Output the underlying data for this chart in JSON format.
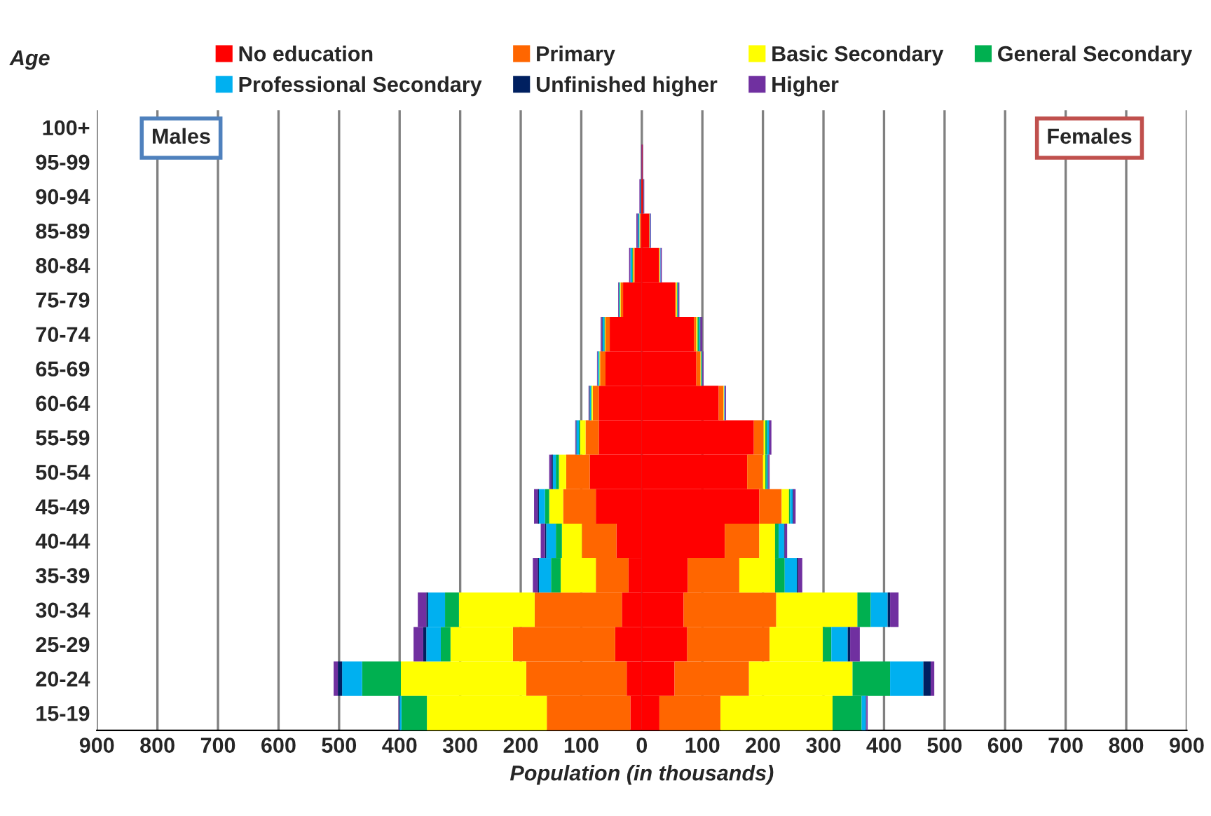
{
  "chart_data": {
    "type": "bar",
    "orientation": "horizontal",
    "stacked": true,
    "xlabel": "Population (in thousands)",
    "ylabel": "Age",
    "categories": [
      "100+",
      "95-99",
      "90-94",
      "85-89",
      "80-84",
      "75-79",
      "70-74",
      "65-69",
      "60-64",
      "55-59",
      "50-54",
      "45-49",
      "40-44",
      "35-39",
      "30-34",
      "25-29",
      "20-24",
      "15-19"
    ],
    "series": [
      {
        "name": "No education",
        "color": "#ff0000",
        "values": [
          0,
          0,
          -1,
          -2,
          -12,
          -31,
          -53,
          -60,
          -71,
          -71,
          -86,
          -76,
          -42,
          -22,
          -33,
          -44,
          -25,
          -19
        ]
      },
      {
        "name": "Primary",
        "color": "#ff6600",
        "values": [
          0,
          0,
          0,
          -1,
          -2,
          -4,
          -7,
          -9,
          -10,
          -22,
          -39,
          -54,
          -57,
          -54,
          -144,
          -169,
          -166,
          -138
        ]
      },
      {
        "name": "Basic Secondary",
        "color": "#ffff00",
        "values": [
          0,
          0,
          0,
          -1,
          -1,
          -1,
          -1,
          -1,
          -2,
          -9,
          -12,
          -23,
          -33,
          -58,
          -125,
          -103,
          -207,
          -198
        ]
      },
      {
        "name": "General Secondary",
        "color": "#00b050",
        "values": [
          0,
          0,
          0,
          0,
          -1,
          -1,
          -1,
          -1,
          -1,
          -2,
          -5,
          -7,
          -10,
          -16,
          -23,
          -16,
          -64,
          -42
        ]
      },
      {
        "name": "Professional Secondary",
        "color": "#00b0f0",
        "values": [
          0,
          0,
          -1,
          -2,
          -3,
          -1,
          -3,
          -2,
          -2,
          -4,
          -5,
          -10,
          -16,
          -20,
          -28,
          -24,
          -33,
          -3
        ]
      },
      {
        "name": "Unfinished higher",
        "color": "#002060",
        "values": [
          0,
          0,
          -1,
          -1,
          0,
          0,
          -1,
          0,
          -1,
          -1,
          -2,
          -2,
          -2,
          -2,
          -3,
          -5,
          -7,
          -1
        ]
      },
      {
        "name": "Higher",
        "color": "#7030a0",
        "values": [
          0,
          -1,
          -1,
          -2,
          -2,
          -1,
          -2,
          -1,
          -1,
          -1,
          -4,
          -6,
          -7,
          -8,
          -14,
          -16,
          -7,
          -1
        ]
      },
      {
        "color": "#ff0000",
        "values": [
          0,
          1,
          2,
          12,
          28,
          55,
          86,
          90,
          127,
          185,
          174,
          194,
          137,
          76,
          69,
          75,
          54,
          29
        ]
      },
      {
        "color": "#ff6600",
        "values": [
          0,
          0,
          0,
          1,
          1,
          2,
          4,
          7,
          8,
          16,
          26,
          37,
          57,
          85,
          153,
          136,
          123,
          101
        ]
      },
      {
        "color": "#ffff00",
        "values": [
          0,
          0,
          0,
          0,
          1,
          1,
          2,
          1,
          1,
          3,
          4,
          12,
          26,
          59,
          134,
          88,
          171,
          185
        ]
      },
      {
        "color": "#00b050",
        "values": [
          0,
          0,
          0,
          0,
          0,
          1,
          2,
          1,
          0,
          3,
          2,
          2,
          6,
          16,
          22,
          14,
          62,
          48
        ]
      },
      {
        "color": "#00b0f0",
        "values": [
          0,
          0,
          0,
          1,
          1,
          1,
          2,
          1,
          1,
          3,
          2,
          4,
          9,
          20,
          28,
          27,
          55,
          7
        ]
      },
      {
        "color": "#002060",
        "values": [
          0,
          0,
          1,
          0,
          0,
          0,
          1,
          0,
          0,
          1,
          1,
          1,
          1,
          2,
          4,
          4,
          12,
          1
        ]
      },
      {
        "color": "#7030a0",
        "values": [
          0,
          1,
          1,
          1,
          2,
          2,
          3,
          2,
          2,
          3,
          2,
          4,
          4,
          7,
          14,
          16,
          6,
          2
        ]
      }
    ],
    "xlim": [
      -900,
      900
    ],
    "xticks": [
      {
        "value": -900,
        "label": "900"
      },
      {
        "value": -800,
        "label": "800"
      },
      {
        "value": -700,
        "label": "700"
      },
      {
        "value": -600,
        "label": "600"
      },
      {
        "value": -500,
        "label": "500"
      },
      {
        "value": -400,
        "label": "400"
      },
      {
        "value": -300,
        "label": "300"
      },
      {
        "value": -200,
        "label": "200"
      },
      {
        "value": -100,
        "label": "100"
      },
      0,
      100,
      200,
      300,
      400,
      500,
      600,
      700,
      800,
      900
    ],
    "grid": "x",
    "legend": "top",
    "annotations": [
      "Males",
      "Females"
    ]
  }
}
